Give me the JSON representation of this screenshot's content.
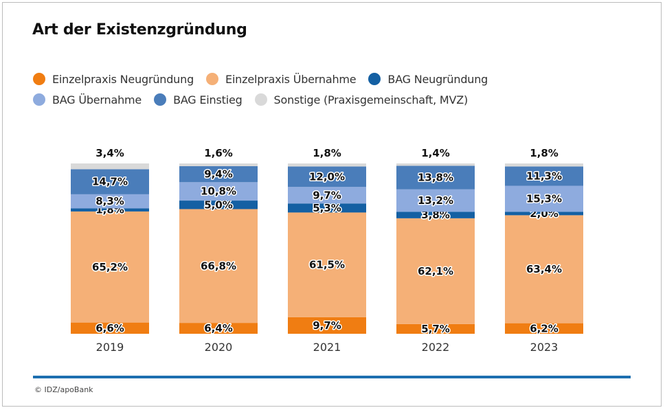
{
  "title": "Art der Existenzgründung",
  "source": "© IDZ/apoBank",
  "legend": [
    {
      "label": "Einzelpraxis Neugründung",
      "color": "#f07d12"
    },
    {
      "label": "Einzelpraxis Übernahme",
      "color": "#f5b077"
    },
    {
      "label": "BAG Neugründung",
      "color": "#1460a3"
    },
    {
      "label": "BAG Übernahme",
      "color": "#8eabde"
    },
    {
      "label": "BAG Einstieg",
      "color": "#4a7dba"
    },
    {
      "label": "Sonstige (Praxisgemeinschaft, MVZ)",
      "color": "#d9d9d9"
    }
  ],
  "chart_data": {
    "type": "bar",
    "stacked": true,
    "categories": [
      "2019",
      "2020",
      "2021",
      "2022",
      "2023"
    ],
    "series": [
      {
        "name": "Einzelpraxis Neugründung",
        "color": "#f07d12",
        "values": [
          6.6,
          6.4,
          9.7,
          5.7,
          6.2
        ],
        "labels": [
          "6,6%",
          "6,4%",
          "9,7%",
          "5,7%",
          "6,2%"
        ]
      },
      {
        "name": "Einzelpraxis Übernahme",
        "color": "#f5b077",
        "values": [
          65.2,
          66.8,
          61.5,
          62.1,
          63.4
        ],
        "labels": [
          "65,2%",
          "66,8%",
          "61,5%",
          "62,1%",
          "63,4%"
        ]
      },
      {
        "name": "BAG Neugründung",
        "color": "#1460a3",
        "values": [
          1.8,
          5.0,
          5.3,
          3.8,
          2.0
        ],
        "labels": [
          "1,8%",
          "5,0%",
          "5,3%",
          "3,8%",
          "2,0%"
        ]
      },
      {
        "name": "BAG Übernahme",
        "color": "#8eabde",
        "values": [
          8.3,
          10.8,
          9.7,
          13.2,
          15.3
        ],
        "labels": [
          "8,3%",
          "10,8%",
          "9,7%",
          "13,2%",
          "15,3%"
        ]
      },
      {
        "name": "BAG Einstieg",
        "color": "#4a7dba",
        "values": [
          14.7,
          9.4,
          12.0,
          13.8,
          11.3
        ],
        "labels": [
          "14,7%",
          "9,4%",
          "12,0%",
          "13,8%",
          "11,3%"
        ]
      },
      {
        "name": "Sonstige (Praxisgemeinschaft, MVZ)",
        "color": "#d9d9d9",
        "values": [
          3.4,
          1.6,
          1.8,
          1.4,
          1.8
        ],
        "labels": [
          "3,4%",
          "1,6%",
          "1,8%",
          "1,4%",
          "1,8%"
        ]
      }
    ],
    "ylim": [
      0,
      100
    ],
    "grid": false,
    "legend_position": "top-left"
  }
}
